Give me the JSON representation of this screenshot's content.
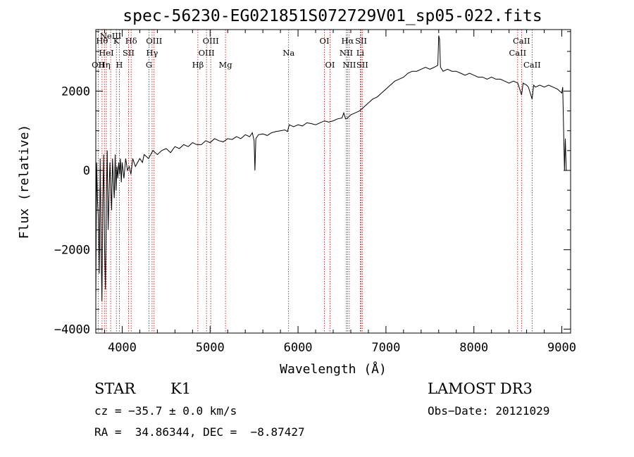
{
  "chart_data": {
    "type": "line",
    "title": "spec-56230-EG021851S072729V01_sp05-022.fits",
    "xlabel": "Wavelength (Å)",
    "ylabel": "Flux (relative)",
    "xlim": [
      3700,
      9100
    ],
    "ylim": [
      -4100,
      3550
    ],
    "xticks": [
      {
        "value": 4000,
        "label": "4000"
      },
      {
        "value": 5000,
        "label": "5000"
      },
      {
        "value": 6000,
        "label": "6000"
      },
      {
        "value": 7000,
        "label": "7000"
      },
      {
        "value": 8000,
        "label": "8000"
      },
      {
        "value": 9000,
        "label": "9000"
      }
    ],
    "yticks": [
      {
        "value": -4000,
        "label": "−4000"
      },
      {
        "value": -2000,
        "label": "−2000"
      },
      {
        "value": 0,
        "label": "0"
      },
      {
        "value": 2000,
        "label": "2000"
      }
    ],
    "series": [
      {
        "name": "spectrum",
        "color": "#000000",
        "points": [
          [
            3700,
            -3300
          ],
          [
            3710,
            200
          ],
          [
            3720,
            -800
          ],
          [
            3730,
            -1200
          ],
          [
            3740,
            -2600
          ],
          [
            3750,
            300
          ],
          [
            3760,
            -1800
          ],
          [
            3770,
            -3300
          ],
          [
            3780,
            -800
          ],
          [
            3790,
            400
          ],
          [
            3800,
            -2000
          ],
          [
            3810,
            -3000
          ],
          [
            3820,
            -700
          ],
          [
            3830,
            500
          ],
          [
            3840,
            -1500
          ],
          [
            3850,
            -700
          ],
          [
            3860,
            200
          ],
          [
            3870,
            -400
          ],
          [
            3880,
            -1000
          ],
          [
            3890,
            300
          ],
          [
            3900,
            -300
          ],
          [
            3910,
            -700
          ],
          [
            3920,
            400
          ],
          [
            3930,
            -500
          ],
          [
            3940,
            100
          ],
          [
            3950,
            -200
          ],
          [
            3960,
            200
          ],
          [
            3970,
            -100
          ],
          [
            3980,
            300
          ],
          [
            3990,
            -300
          ],
          [
            4000,
            200
          ],
          [
            4020,
            -200
          ],
          [
            4040,
            300
          ],
          [
            4060,
            0
          ],
          [
            4080,
            100
          ],
          [
            4100,
            -100
          ],
          [
            4120,
            300
          ],
          [
            4150,
            100
          ],
          [
            4200,
            300
          ],
          [
            4230,
            200
          ],
          [
            4250,
            400
          ],
          [
            4300,
            300
          ],
          [
            4350,
            500
          ],
          [
            4400,
            400
          ],
          [
            4450,
            500
          ],
          [
            4500,
            550
          ],
          [
            4550,
            450
          ],
          [
            4600,
            600
          ],
          [
            4650,
            550
          ],
          [
            4700,
            650
          ],
          [
            4750,
            600
          ],
          [
            4800,
            700
          ],
          [
            4850,
            650
          ],
          [
            4900,
            650
          ],
          [
            4950,
            750
          ],
          [
            5000,
            700
          ],
          [
            5050,
            800
          ],
          [
            5100,
            750
          ],
          [
            5150,
            720
          ],
          [
            5200,
            800
          ],
          [
            5250,
            780
          ],
          [
            5300,
            850
          ],
          [
            5350,
            800
          ],
          [
            5400,
            900
          ],
          [
            5450,
            850
          ],
          [
            5480,
            950
          ],
          [
            5500,
            750
          ],
          [
            5510,
            0
          ],
          [
            5520,
            800
          ],
          [
            5550,
            900
          ],
          [
            5600,
            920
          ],
          [
            5650,
            880
          ],
          [
            5700,
            950
          ],
          [
            5750,
            980
          ],
          [
            5800,
            1000
          ],
          [
            5850,
            1020
          ],
          [
            5880,
            980
          ],
          [
            5900,
            1150
          ],
          [
            5950,
            1100
          ],
          [
            6000,
            1150
          ],
          [
            6050,
            1120
          ],
          [
            6100,
            1200
          ],
          [
            6150,
            1180
          ],
          [
            6200,
            1150
          ],
          [
            6250,
            1200
          ],
          [
            6300,
            1250
          ],
          [
            6350,
            1220
          ],
          [
            6400,
            1250
          ],
          [
            6450,
            1300
          ],
          [
            6500,
            1320
          ],
          [
            6520,
            1450
          ],
          [
            6540,
            1300
          ],
          [
            6563,
            1320
          ],
          [
            6600,
            1400
          ],
          [
            6650,
            1450
          ],
          [
            6700,
            1500
          ],
          [
            6750,
            1600
          ],
          [
            6800,
            1700
          ],
          [
            6850,
            1800
          ],
          [
            6900,
            1850
          ],
          [
            6950,
            1950
          ],
          [
            7000,
            2050
          ],
          [
            7050,
            2150
          ],
          [
            7100,
            2250
          ],
          [
            7150,
            2300
          ],
          [
            7200,
            2350
          ],
          [
            7250,
            2450
          ],
          [
            7300,
            2500
          ],
          [
            7350,
            2500
          ],
          [
            7400,
            2550
          ],
          [
            7450,
            2600
          ],
          [
            7500,
            2550
          ],
          [
            7550,
            2600
          ],
          [
            7590,
            2650
          ],
          [
            7600,
            3400
          ],
          [
            7610,
            3300
          ],
          [
            7620,
            2600
          ],
          [
            7650,
            2500
          ],
          [
            7700,
            2550
          ],
          [
            7750,
            2500
          ],
          [
            7800,
            2500
          ],
          [
            7850,
            2450
          ],
          [
            7900,
            2400
          ],
          [
            7950,
            2450
          ],
          [
            8000,
            2400
          ],
          [
            8050,
            2350
          ],
          [
            8100,
            2350
          ],
          [
            8150,
            2300
          ],
          [
            8200,
            2350
          ],
          [
            8250,
            2300
          ],
          [
            8300,
            2300
          ],
          [
            8350,
            2250
          ],
          [
            8400,
            2200
          ],
          [
            8450,
            2250
          ],
          [
            8500,
            2200
          ],
          [
            8542,
            1900
          ],
          [
            8560,
            2200
          ],
          [
            8600,
            2150
          ],
          [
            8620,
            2100
          ],
          [
            8662,
            1800
          ],
          [
            8680,
            2150
          ],
          [
            8700,
            2100
          ],
          [
            8750,
            2150
          ],
          [
            8800,
            2100
          ],
          [
            8850,
            2150
          ],
          [
            8900,
            2100
          ],
          [
            8950,
            2050
          ],
          [
            9000,
            1950
          ],
          [
            9010,
            2100
          ],
          [
            9030,
            0
          ],
          [
            9040,
            800
          ],
          [
            9050,
            0
          ]
        ]
      }
    ],
    "line_markers": [
      {
        "wavelength": 3727,
        "label": "OII",
        "tier": 2
      },
      {
        "wavelength": 3771,
        "label": "Hθ",
        "tier": 0
      },
      {
        "wavelength": 3798,
        "label": "Hη",
        "tier": 2
      },
      {
        "wavelength": 3820,
        "label": "HeI",
        "tier": 1
      },
      {
        "wavelength": 3869,
        "label": "NeIII",
        "tier": -1
      },
      {
        "wavelength": 3934,
        "label": "K",
        "tier": 0
      },
      {
        "wavelength": 3968,
        "label": "H",
        "tier": 2
      },
      {
        "wavelength": 4072,
        "label": "SII",
        "tier": 1
      },
      {
        "wavelength": 4102,
        "label": "Hδ",
        "tier": 0
      },
      {
        "wavelength": 4305,
        "label": "G",
        "tier": 2
      },
      {
        "wavelength": 4340,
        "label": "Hγ",
        "tier": 1
      },
      {
        "wavelength": 4363,
        "label": "OIII",
        "tier": 0
      },
      {
        "wavelength": 4861,
        "label": "Hβ",
        "tier": 2
      },
      {
        "wavelength": 4959,
        "label": "OIII",
        "tier": 1
      },
      {
        "wavelength": 5007,
        "label": "OIII",
        "tier": 0
      },
      {
        "wavelength": 5175,
        "label": "Mg",
        "tier": 2
      },
      {
        "wavelength": 5893,
        "label": "Na",
        "tier": 1
      },
      {
        "wavelength": 6300,
        "label": "OI",
        "tier": 0
      },
      {
        "wavelength": 6364,
        "label": "OI",
        "tier": 2
      },
      {
        "wavelength": 6548,
        "label": "NII",
        "tier": 1
      },
      {
        "wavelength": 6563,
        "label": "Hα",
        "tier": 0
      },
      {
        "wavelength": 6583,
        "label": "NII",
        "tier": 2
      },
      {
        "wavelength": 6708,
        "label": "Li",
        "tier": 1
      },
      {
        "wavelength": 6717,
        "label": "SII",
        "tier": 0
      },
      {
        "wavelength": 6731,
        "label": "SII",
        "tier": 2
      },
      {
        "wavelength": 8498,
        "label": "CaII",
        "tier": 1
      },
      {
        "wavelength": 8542,
        "label": "CaII",
        "tier": 0
      },
      {
        "wavelength": 8662,
        "label": "CaII",
        "tier": 2
      }
    ],
    "marker_color": "#c00000",
    "info": {
      "class": "STAR",
      "subclass": "K1",
      "survey": "LAMOST DR3",
      "cz": "cz = −35.7 ± 0.0 km/s",
      "obs_date": "Obs−Date: 20121029",
      "radec": "RA =  34.86344, DEC =  −8.87427"
    }
  }
}
